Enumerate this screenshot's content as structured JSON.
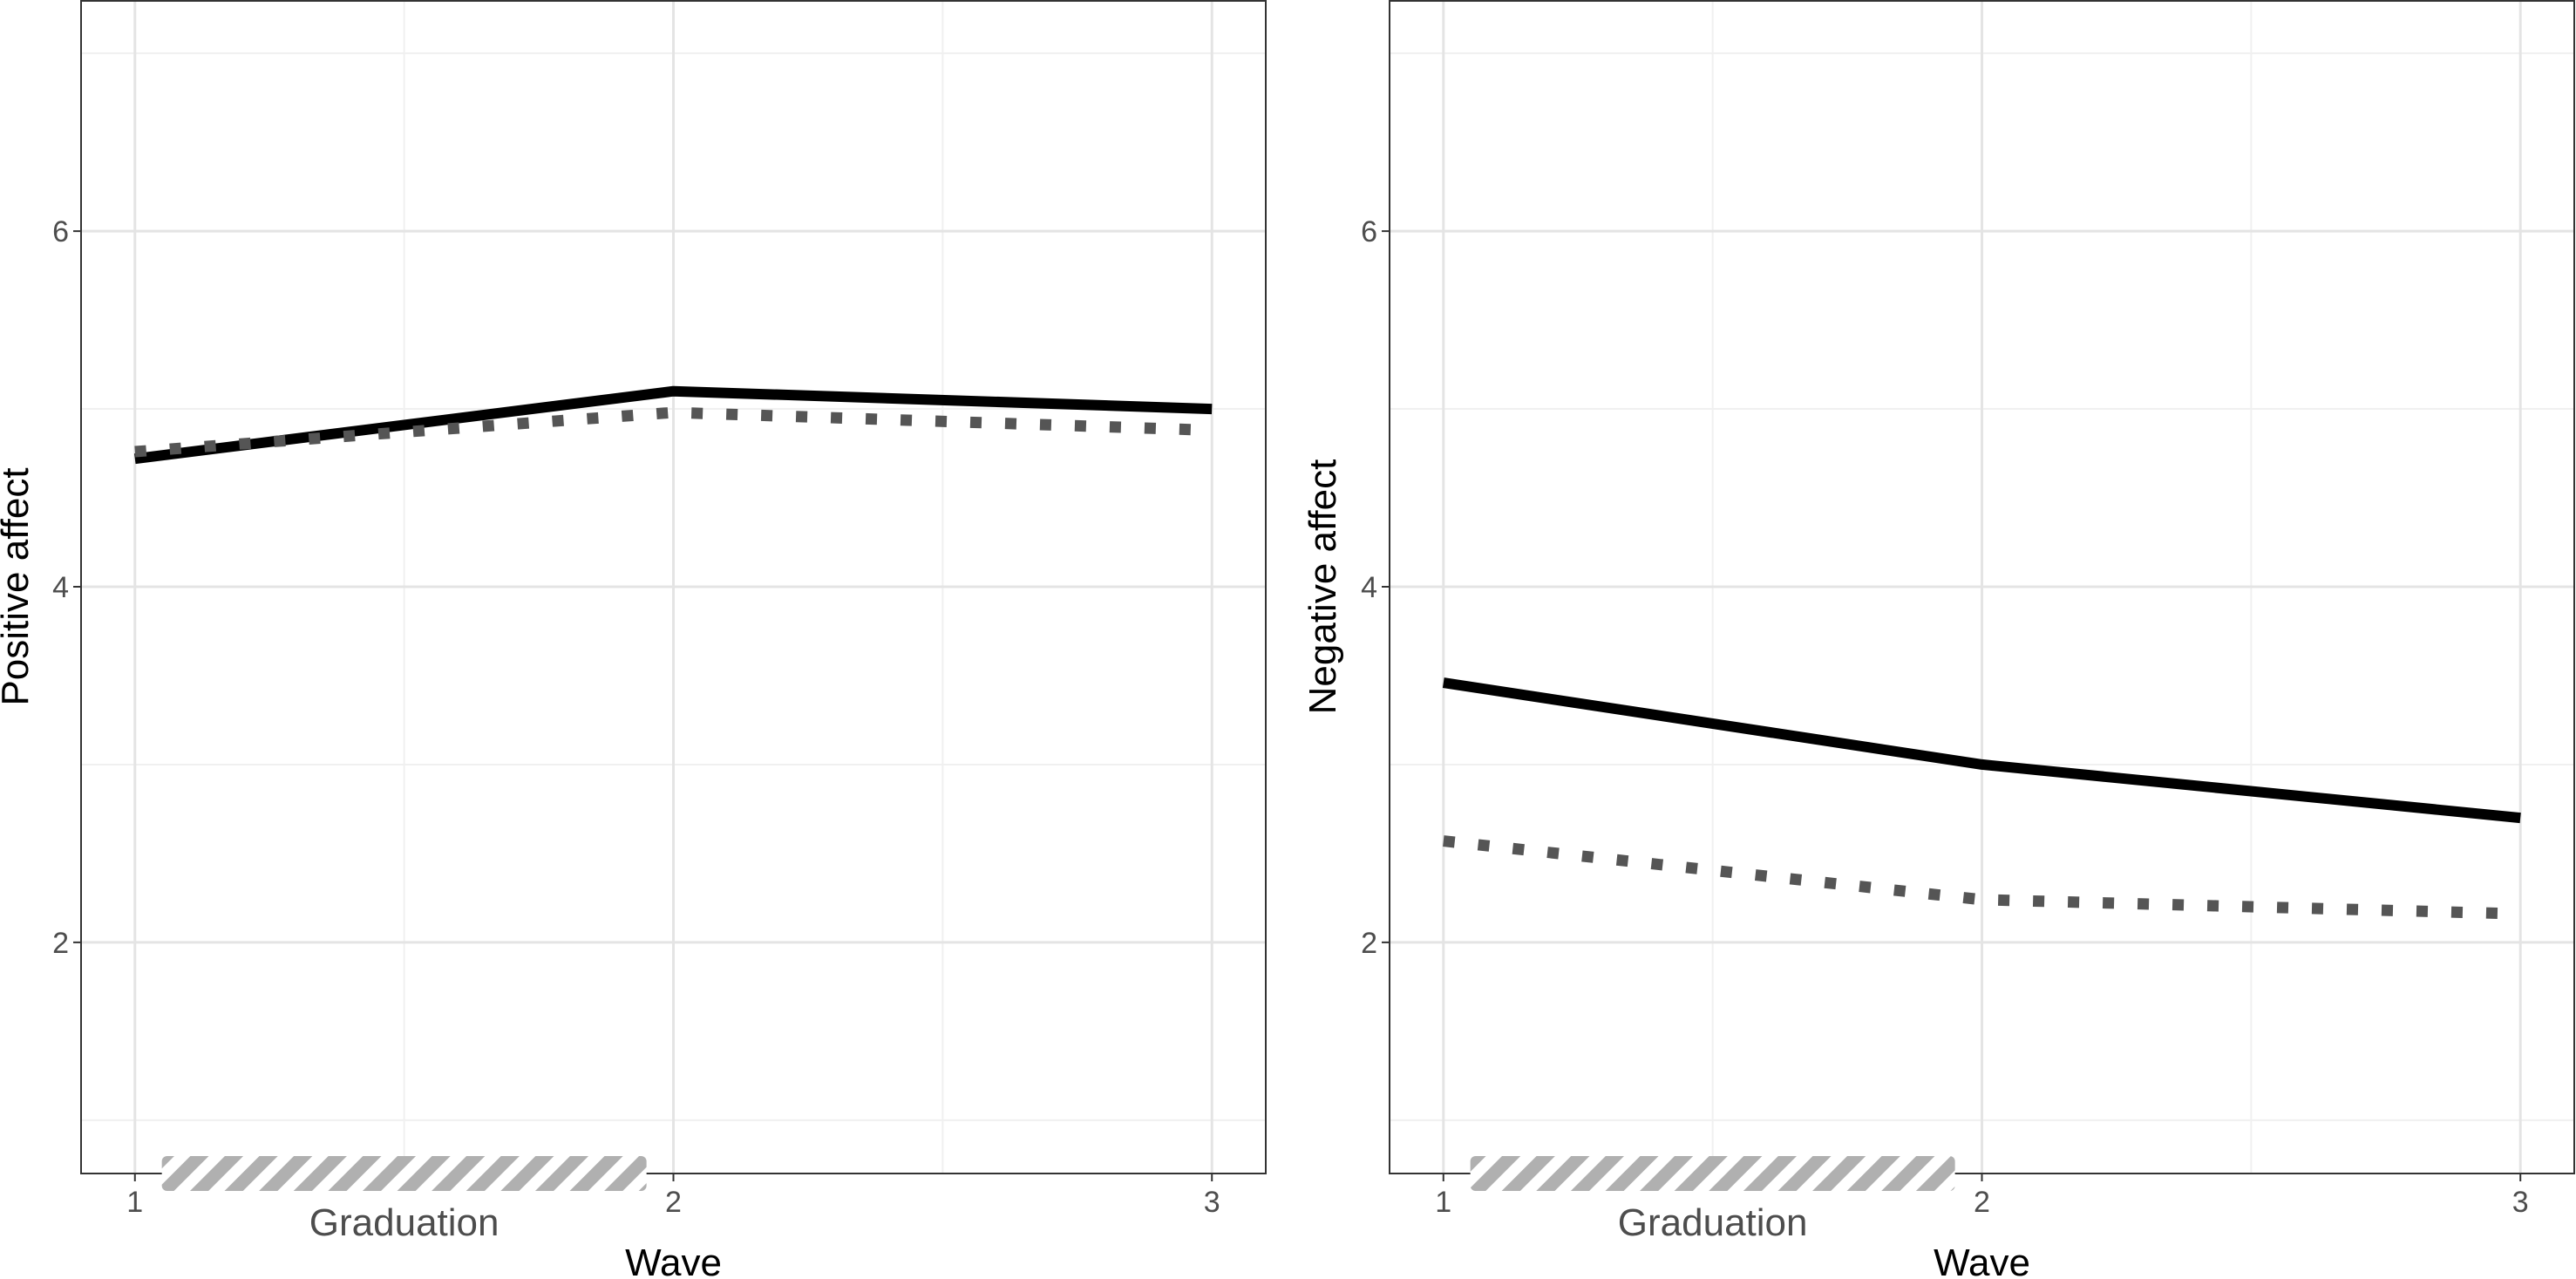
{
  "chart_data": [
    {
      "type": "line",
      "panel": "left",
      "xlabel": "Wave",
      "ylabel": "Positive affect",
      "x": [
        1,
        2,
        3
      ],
      "xlim": [
        0.9,
        3.1
      ],
      "ylim": [
        0.7,
        7.3
      ],
      "xticks": [
        "1",
        "2",
        "3"
      ],
      "yticks": [
        "2",
        "4",
        "6"
      ],
      "series": [
        {
          "name": "solid",
          "style": "solid",
          "color": "#000000",
          "values": [
            4.72,
            5.1,
            5.0
          ]
        },
        {
          "name": "dotted",
          "style": "dotted",
          "color": "#555555",
          "values": [
            4.76,
            4.98,
            4.88
          ]
        }
      ],
      "annotation": {
        "label": "Graduation",
        "x_start": 1.05,
        "x_end": 1.95
      }
    },
    {
      "type": "line",
      "panel": "right",
      "xlabel": "Wave",
      "ylabel": "Negative affect",
      "x": [
        1,
        2,
        3
      ],
      "xlim": [
        0.9,
        3.1
      ],
      "ylim": [
        0.7,
        7.3
      ],
      "xticks": [
        "1",
        "2",
        "3"
      ],
      "yticks": [
        "2",
        "4",
        "6"
      ],
      "series": [
        {
          "name": "solid",
          "style": "solid",
          "color": "#000000",
          "values": [
            3.46,
            3.0,
            2.7
          ]
        },
        {
          "name": "dotted",
          "style": "dotted",
          "color": "#555555",
          "values": [
            2.57,
            2.24,
            2.16
          ]
        }
      ],
      "annotation": {
        "label": "Graduation",
        "x_start": 1.05,
        "x_end": 1.95
      }
    }
  ]
}
